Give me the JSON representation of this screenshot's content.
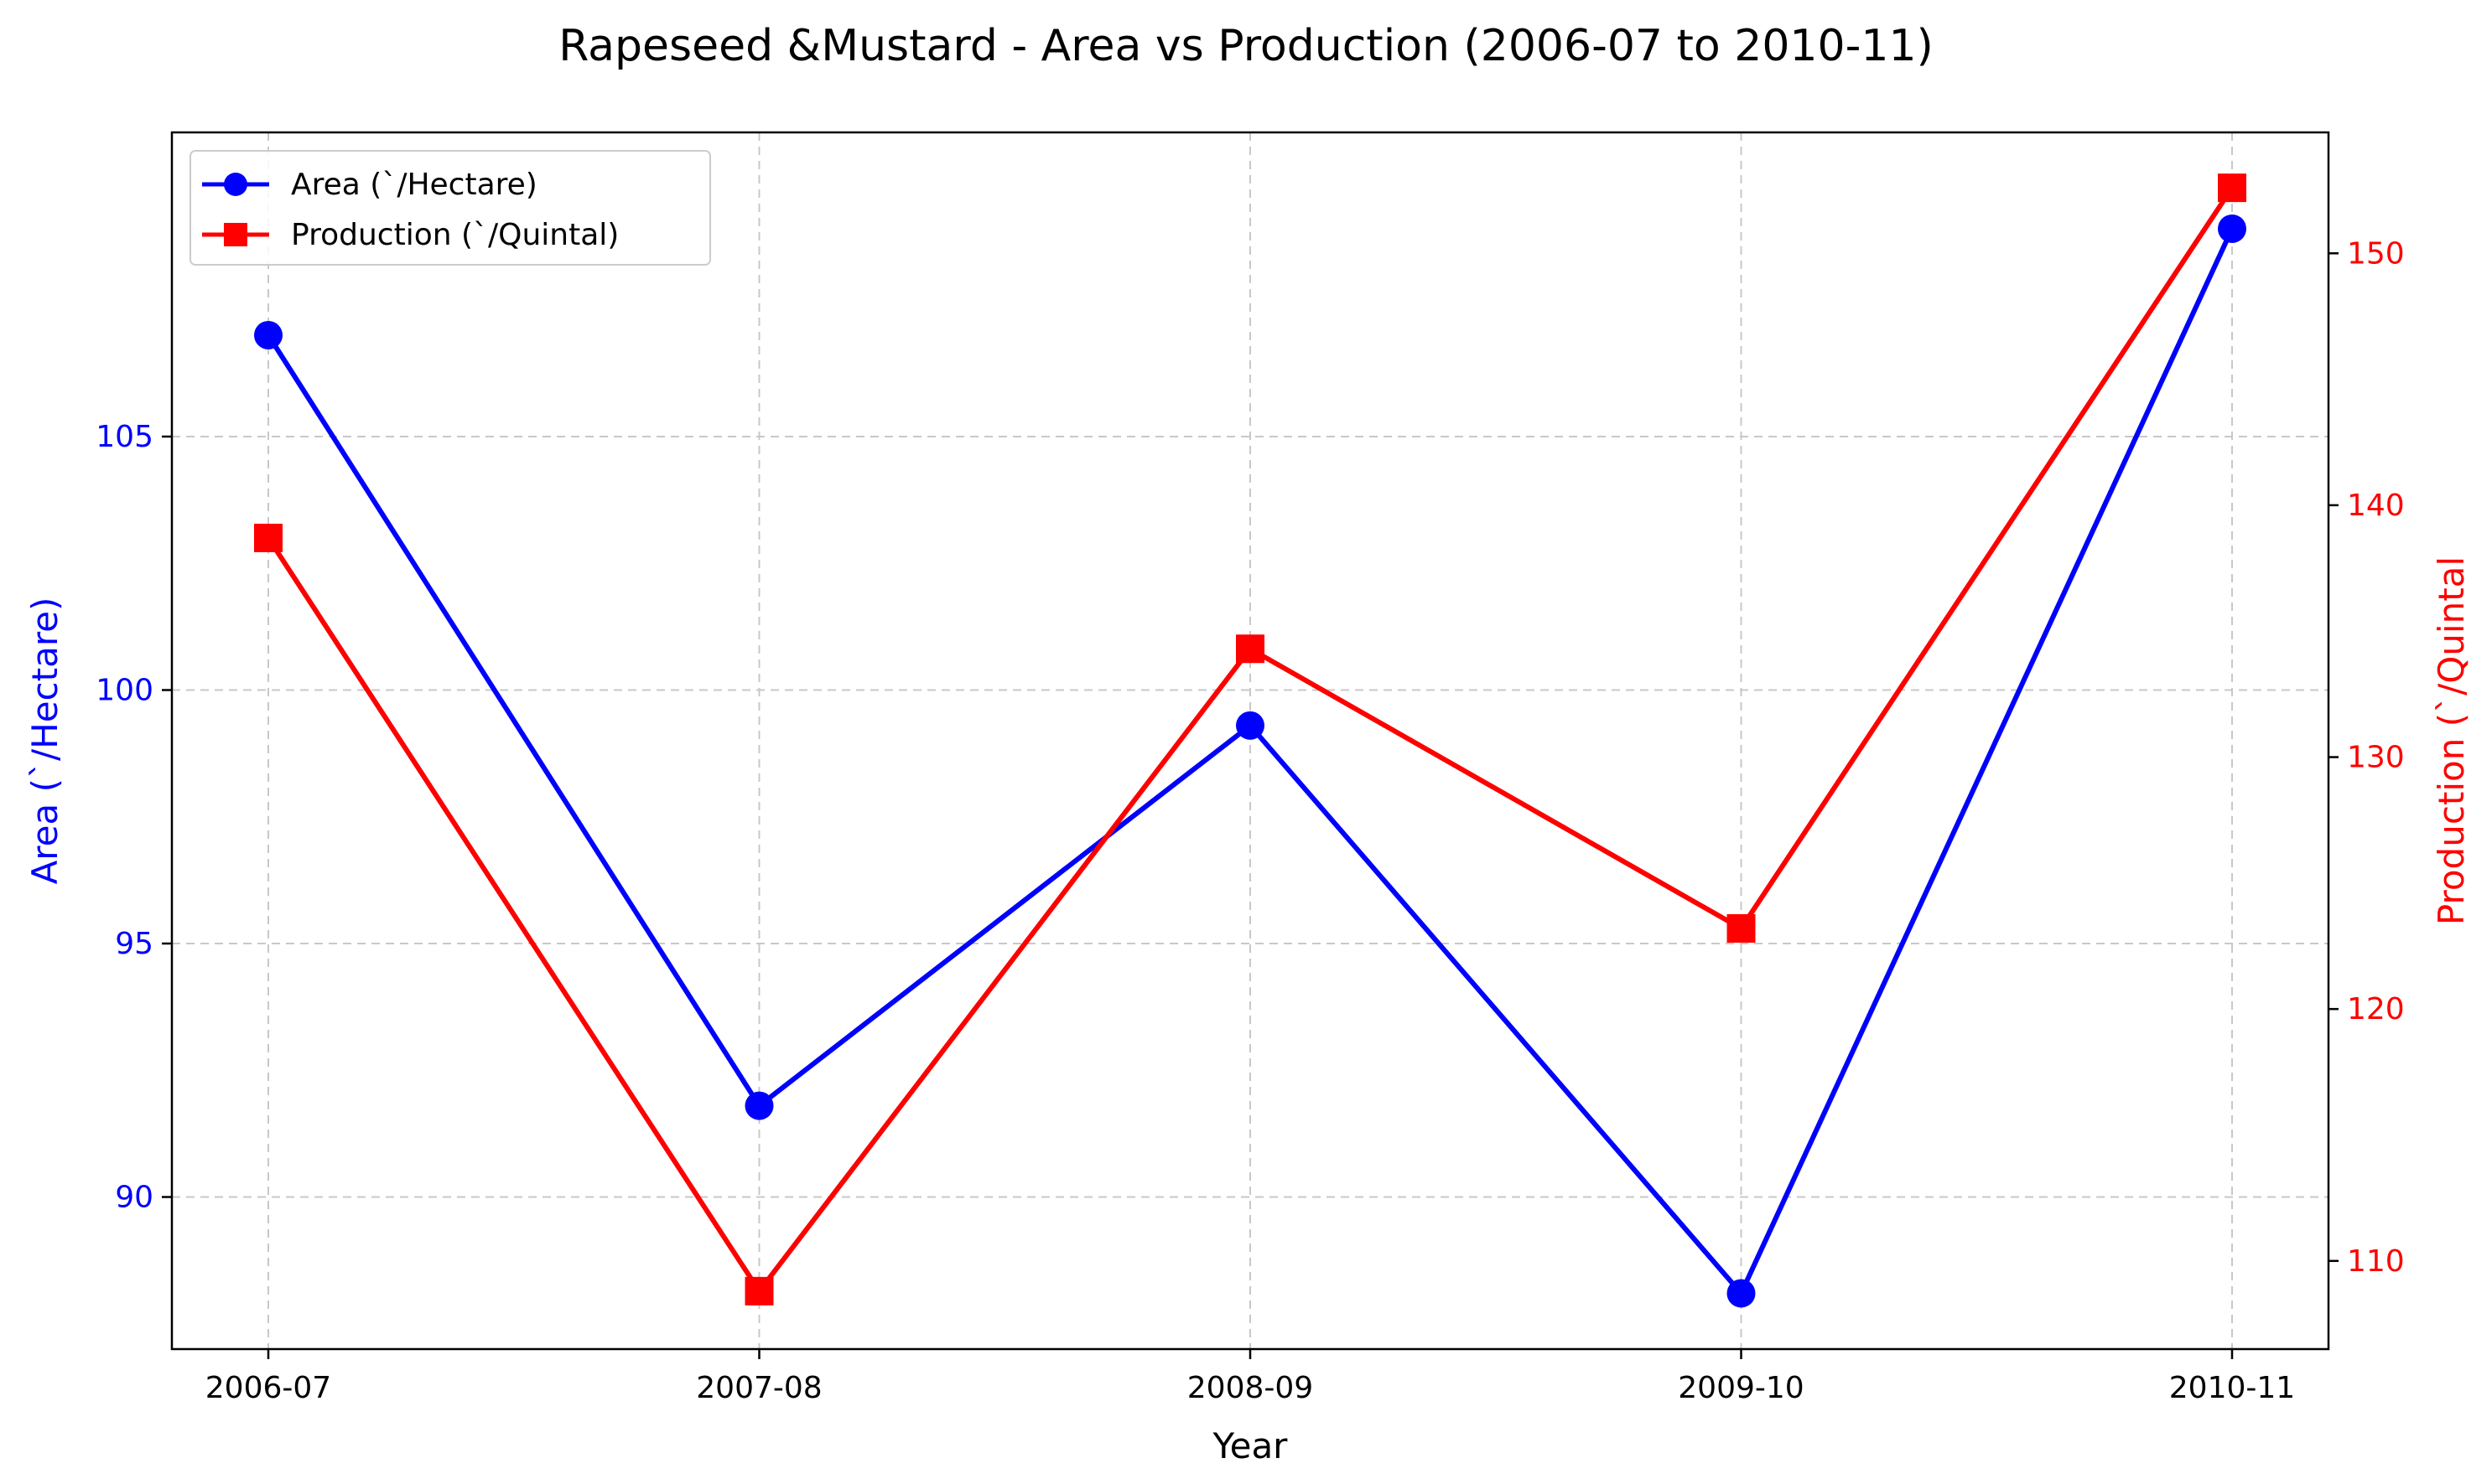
{
  "colors": {
    "area": "#0000ff",
    "production": "#ff0000",
    "grid": "#c8c8c8",
    "axis": "#000000",
    "text": "#000000"
  },
  "chart_data": {
    "type": "line",
    "title": "Rapeseed &Mustard - Area vs Production (2006-07 to 2010-11)",
    "xlabel": "Year",
    "ylabel_left": "Area (`/Hectare)",
    "ylabel_right": "Production (`/Quintal",
    "categories": [
      "2006-07",
      "2007-08",
      "2008-09",
      "2009-10",
      "2010-11"
    ],
    "series": [
      {
        "name": "Area (`/Hectare)",
        "axis": "left",
        "color": "#0000ff",
        "marker": "circle",
        "values": [
          107.0,
          91.8,
          99.3,
          88.1,
          109.1
        ]
      },
      {
        "name": "Production (`/Quintal)",
        "axis": "right",
        "color": "#ff0000",
        "marker": "square",
        "values": [
          138.7,
          108.8,
          134.3,
          123.2,
          152.6
        ]
      }
    ],
    "ylim_left": [
      87.0,
      111.0
    ],
    "yticks_left": [
      90,
      95,
      100,
      105
    ],
    "ylim_right": [
      106.5,
      154.8
    ],
    "yticks_right": [
      110,
      120,
      130,
      140,
      150
    ],
    "grid": true,
    "legend_position": "upper-left"
  }
}
